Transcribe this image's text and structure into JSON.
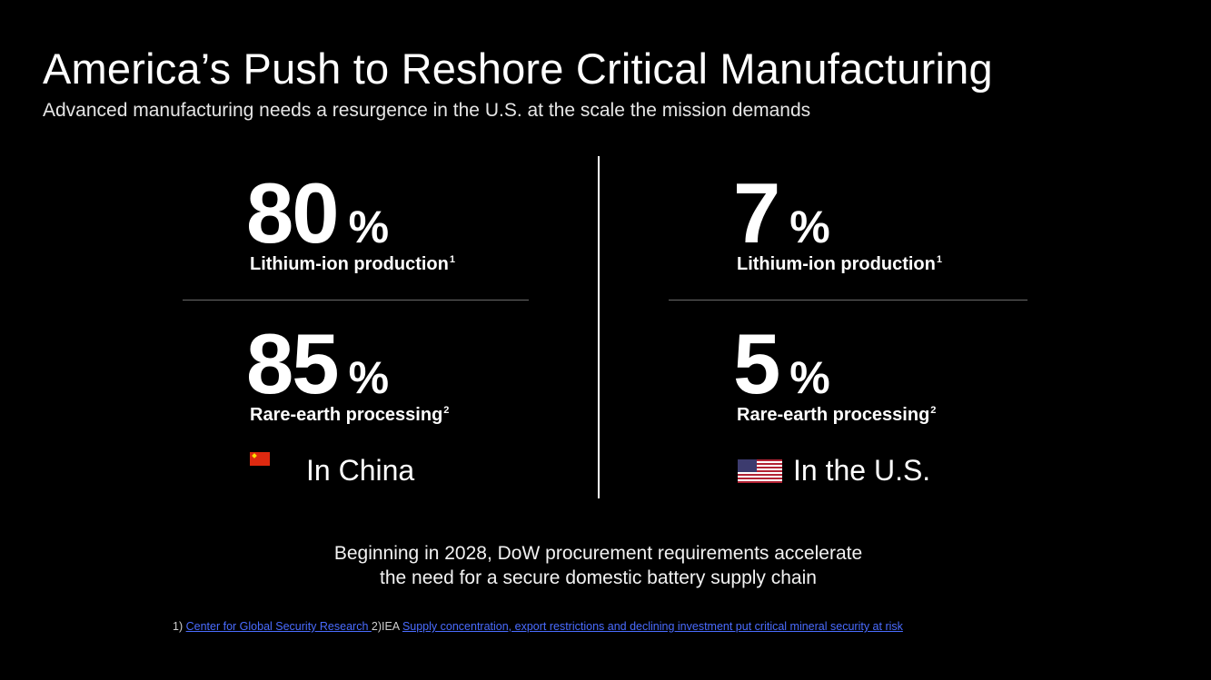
{
  "header": {
    "title": "America’s Push to Reshore Critical Manufacturing",
    "subtitle": "Advanced manufacturing needs a resurgence in the U.S. at the scale the mission demands"
  },
  "china": {
    "region_label": "In China",
    "flag_icon": "china-flag-icon",
    "stats": [
      {
        "value": "80",
        "unit": "%",
        "label": "Lithium-ion production",
        "ref": "1"
      },
      {
        "value": "85",
        "unit": "%",
        "label": "Rare-earth processing",
        "ref": "2"
      }
    ]
  },
  "us": {
    "region_label": "In the U.S.",
    "flag_icon": "us-flag-icon",
    "stats": [
      {
        "value": "7",
        "unit": "%",
        "label": "Lithium-ion production",
        "ref": "1"
      },
      {
        "value": "5",
        "unit": "%",
        "label": "Rare-earth processing",
        "ref": "2"
      }
    ]
  },
  "bottom": {
    "line1": "Beginning in 2028, DoW procurement requirements accelerate",
    "line2": "the need for a secure domestic battery supply chain"
  },
  "footnotes": {
    "prefix1": "1)",
    "link1": "Center for Global Security Research ",
    "prefix2": "2)IEA",
    "link2": "Supply concentration, export restrictions and declining investment put critical mineral security at risk"
  },
  "colors": {
    "background": "#000000",
    "text": "#ffffff",
    "link": "#4a6cff",
    "divider": "#6a6a6a"
  }
}
